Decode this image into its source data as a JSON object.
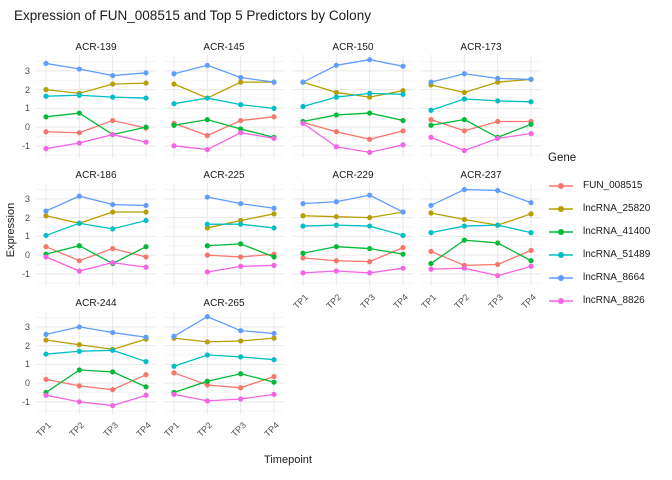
{
  "title": "Expression of FUN_008515 and Top 5 Predictors by Colony",
  "axes": {
    "x_label": "Timepoint",
    "y_label": "Expression",
    "x_ticks": [
      "TP1",
      "TP2",
      "TP3",
      "TP4"
    ],
    "y_ticks": [
      "3",
      "2",
      "1",
      "0",
      "-1"
    ]
  },
  "legend": {
    "title": "Gene",
    "entries": [
      {
        "label": "FUN_008515",
        "color": "#F8766D"
      },
      {
        "label": "lncRNA_25820",
        "color": "#B79F00"
      },
      {
        "label": "lncRNA_41400",
        "color": "#00BA38"
      },
      {
        "label": "lncRNA_51489",
        "color": "#00BFC4"
      },
      {
        "label": "lncRNA_8664",
        "color": "#619CFF"
      },
      {
        "label": "lncRNA_8826",
        "color": "#F564E3"
      }
    ]
  },
  "chart_data": {
    "type": "line",
    "title": "Expression of FUN_008515 and Top 5 Predictors by Colony",
    "xlabel": "Timepoint",
    "ylabel": "Expression",
    "x": [
      "TP1",
      "TP2",
      "TP3",
      "TP4"
    ],
    "ylim": [
      -1.65,
      3.85
    ],
    "y_major_gridlines": [
      -1,
      0,
      1,
      2,
      3
    ],
    "y_minor_gridlines": [
      -1.5,
      -0.5,
      0.5,
      1.5,
      2.5,
      3.5
    ],
    "legend_position": "right",
    "facets": [
      {
        "name": "ACR-139",
        "series": {
          "FUN_008515": [
            -0.25,
            -0.3,
            0.35,
            -0.05
          ],
          "lncRNA_25820": [
            2.0,
            1.8,
            2.3,
            2.35
          ],
          "lncRNA_41400": [
            0.55,
            0.75,
            -0.4,
            0.0
          ],
          "lncRNA_51489": [
            1.65,
            1.7,
            1.6,
            1.55
          ],
          "lncRNA_8664": [
            3.4,
            3.1,
            2.75,
            2.9
          ],
          "lncRNA_8826": [
            -1.15,
            -0.85,
            -0.4,
            -0.8
          ]
        }
      },
      {
        "name": "ACR-145",
        "series": {
          "FUN_008515": [
            0.2,
            -0.45,
            0.35,
            0.55
          ],
          "lncRNA_25820": [
            2.3,
            1.55,
            2.4,
            2.4
          ],
          "lncRNA_41400": [
            0.1,
            0.4,
            -0.1,
            -0.55
          ],
          "lncRNA_51489": [
            1.25,
            1.55,
            1.2,
            1.0
          ],
          "lncRNA_8664": [
            2.85,
            3.3,
            2.65,
            2.4
          ],
          "lncRNA_8826": [
            -1.0,
            -1.2,
            -0.3,
            -0.6
          ]
        }
      },
      {
        "name": "ACR-150",
        "series": {
          "FUN_008515": [
            0.25,
            -0.25,
            -0.65,
            -0.2
          ],
          "lncRNA_25820": [
            2.4,
            1.85,
            1.6,
            1.95
          ],
          "lncRNA_41400": [
            0.3,
            0.65,
            0.75,
            0.35
          ],
          "lncRNA_51489": [
            1.1,
            1.6,
            1.8,
            1.75
          ],
          "lncRNA_8664": [
            2.4,
            3.3,
            3.6,
            3.25
          ],
          "lncRNA_8826": [
            0.2,
            -1.05,
            -1.35,
            -0.95
          ]
        }
      },
      {
        "name": "ACR-173",
        "series": {
          "FUN_008515": [
            0.4,
            -0.2,
            0.3,
            0.3
          ],
          "lncRNA_25820": [
            2.25,
            1.85,
            2.4,
            2.55
          ],
          "lncRNA_41400": [
            0.1,
            0.4,
            -0.55,
            0.15
          ],
          "lncRNA_51489": [
            0.9,
            1.5,
            1.4,
            1.35
          ],
          "lncRNA_8664": [
            2.4,
            2.85,
            2.6,
            2.55
          ],
          "lncRNA_8826": [
            -0.55,
            -1.25,
            -0.6,
            -0.35
          ]
        }
      },
      {
        "name": "ACR-186",
        "series": {
          "FUN_008515": [
            0.45,
            -0.3,
            0.35,
            -0.1
          ],
          "lncRNA_25820": [
            2.1,
            1.7,
            2.3,
            2.3
          ],
          "lncRNA_41400": [
            0.05,
            0.5,
            -0.45,
            0.45
          ],
          "lncRNA_51489": [
            1.05,
            1.7,
            1.4,
            1.85
          ],
          "lncRNA_8664": [
            2.35,
            3.15,
            2.7,
            2.65
          ],
          "lncRNA_8826": [
            -0.1,
            -0.85,
            -0.4,
            -0.65
          ]
        }
      },
      {
        "name": "ACR-225",
        "series": {
          "FUN_008515": [
            null,
            0.0,
            -0.1,
            0.05
          ],
          "lncRNA_25820": [
            null,
            1.45,
            1.85,
            2.2
          ],
          "lncRNA_41400": [
            null,
            0.5,
            0.6,
            -0.1
          ],
          "lncRNA_51489": [
            null,
            1.65,
            1.65,
            1.45
          ],
          "lncRNA_8664": [
            null,
            3.1,
            2.75,
            2.5
          ],
          "lncRNA_8826": [
            null,
            -0.9,
            -0.6,
            -0.55
          ]
        }
      },
      {
        "name": "ACR-229",
        "series": {
          "FUN_008515": [
            -0.15,
            -0.3,
            -0.35,
            0.4
          ],
          "lncRNA_25820": [
            2.1,
            2.05,
            2.0,
            2.3
          ],
          "lncRNA_41400": [
            0.1,
            0.45,
            0.35,
            0.05
          ],
          "lncRNA_51489": [
            1.55,
            1.6,
            1.55,
            1.05
          ],
          "lncRNA_8664": [
            2.75,
            2.85,
            3.2,
            2.3
          ],
          "lncRNA_8826": [
            -0.95,
            -0.85,
            -0.95,
            -0.7
          ]
        }
      },
      {
        "name": "ACR-237",
        "series": {
          "FUN_008515": [
            0.2,
            -0.55,
            -0.5,
            0.25
          ],
          "lncRNA_25820": [
            2.25,
            1.9,
            1.6,
            2.2
          ],
          "lncRNA_41400": [
            -0.45,
            0.8,
            0.65,
            -0.3
          ],
          "lncRNA_51489": [
            1.2,
            1.55,
            1.6,
            1.2
          ],
          "lncRNA_8664": [
            2.65,
            3.5,
            3.45,
            2.8
          ],
          "lncRNA_8826": [
            -0.75,
            -0.7,
            -1.1,
            -0.6
          ]
        }
      },
      {
        "name": "ACR-244",
        "series": {
          "FUN_008515": [
            0.2,
            -0.15,
            -0.35,
            0.45
          ],
          "lncRNA_25820": [
            2.3,
            2.05,
            1.8,
            2.35
          ],
          "lncRNA_41400": [
            -0.5,
            0.7,
            0.6,
            -0.2
          ],
          "lncRNA_51489": [
            1.55,
            1.7,
            1.75,
            1.15
          ],
          "lncRNA_8664": [
            2.6,
            3.0,
            2.7,
            2.45
          ],
          "lncRNA_8826": [
            -0.65,
            -1.0,
            -1.2,
            -0.65
          ]
        }
      },
      {
        "name": "ACR-265",
        "series": {
          "FUN_008515": [
            0.55,
            -0.1,
            -0.25,
            0.35
          ],
          "lncRNA_25820": [
            2.4,
            2.2,
            2.25,
            2.4
          ],
          "lncRNA_41400": [
            -0.5,
            0.1,
            0.5,
            0.05
          ],
          "lncRNA_51489": [
            0.9,
            1.5,
            1.4,
            1.25
          ],
          "lncRNA_8664": [
            2.5,
            3.55,
            2.8,
            2.65
          ],
          "lncRNA_8826": [
            -0.6,
            -0.95,
            -0.85,
            -0.6
          ]
        }
      }
    ]
  },
  "style": {
    "grid_major_color": "#e8e8e8",
    "grid_minor_color": "#f3f3f3"
  }
}
